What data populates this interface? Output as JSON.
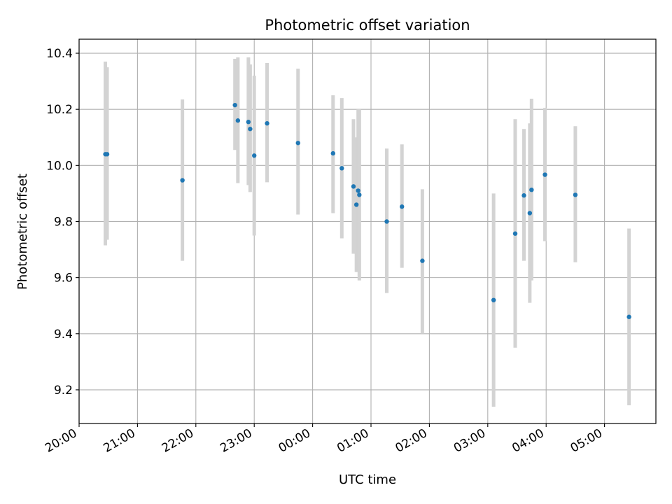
{
  "chart_data": {
    "type": "scatter",
    "title": "Photometric offset variation",
    "xlabel": "UTC time",
    "ylabel": "Photometric offset",
    "x_unit": "hours (UTC, continuing past midnight)",
    "xlim": [
      20.0,
      29.88
    ],
    "ylim": [
      9.08,
      10.45
    ],
    "grid": true,
    "x_ticks": [
      {
        "value": 20,
        "label": "20:00"
      },
      {
        "value": 21,
        "label": "21:00"
      },
      {
        "value": 22,
        "label": "22:00"
      },
      {
        "value": 23,
        "label": "23:00"
      },
      {
        "value": 24,
        "label": "00:00"
      },
      {
        "value": 25,
        "label": "01:00"
      },
      {
        "value": 26,
        "label": "02:00"
      },
      {
        "value": 27,
        "label": "03:00"
      },
      {
        "value": 28,
        "label": "04:00"
      },
      {
        "value": 29,
        "label": "05:00"
      }
    ],
    "y_ticks": [
      {
        "value": 9.2,
        "label": "9.2"
      },
      {
        "value": 9.4,
        "label": "9.4"
      },
      {
        "value": 9.6,
        "label": "9.6"
      },
      {
        "value": 9.8,
        "label": "9.8"
      },
      {
        "value": 10.0,
        "label": "10.0"
      },
      {
        "value": 10.2,
        "label": "10.2"
      },
      {
        "value": 10.4,
        "label": "10.4"
      }
    ],
    "marker_color": "#1f77b4",
    "errorbar_color": "#d3d3d3",
    "points": [
      {
        "x": 20.45,
        "y": 10.04,
        "low": 9.715,
        "high": 10.37
      },
      {
        "x": 20.48,
        "y": 10.04,
        "low": 9.735,
        "high": 10.35
      },
      {
        "x": 21.77,
        "y": 9.947,
        "low": 9.66,
        "high": 10.235
      },
      {
        "x": 22.67,
        "y": 10.215,
        "low": 10.055,
        "high": 10.38
      },
      {
        "x": 22.72,
        "y": 10.16,
        "low": 9.937,
        "high": 10.385
      },
      {
        "x": 22.9,
        "y": 10.155,
        "low": 9.93,
        "high": 10.385
      },
      {
        "x": 22.93,
        "y": 10.13,
        "low": 9.905,
        "high": 10.36
      },
      {
        "x": 23.0,
        "y": 10.035,
        "low": 9.75,
        "high": 10.32
      },
      {
        "x": 23.22,
        "y": 10.15,
        "low": 9.94,
        "high": 10.365
      },
      {
        "x": 23.75,
        "y": 10.08,
        "low": 9.825,
        "high": 10.345
      },
      {
        "x": 24.35,
        "y": 10.043,
        "low": 9.83,
        "high": 10.25
      },
      {
        "x": 24.5,
        "y": 9.99,
        "low": 9.74,
        "high": 10.24
      },
      {
        "x": 24.7,
        "y": 9.925,
        "low": 9.685,
        "high": 10.165
      },
      {
        "x": 24.75,
        "y": 9.86,
        "low": 9.62,
        "high": 10.1
      },
      {
        "x": 24.78,
        "y": 9.91,
        "low": 9.62,
        "high": 10.2
      },
      {
        "x": 24.8,
        "y": 9.895,
        "low": 9.59,
        "high": 10.2
      },
      {
        "x": 25.27,
        "y": 9.8,
        "low": 9.545,
        "high": 10.06
      },
      {
        "x": 25.53,
        "y": 9.853,
        "low": 9.635,
        "high": 10.075
      },
      {
        "x": 25.88,
        "y": 9.66,
        "low": 9.4,
        "high": 9.915
      },
      {
        "x": 27.1,
        "y": 9.52,
        "low": 9.14,
        "high": 9.9
      },
      {
        "x": 27.47,
        "y": 9.757,
        "low": 9.35,
        "high": 10.165
      },
      {
        "x": 27.62,
        "y": 9.893,
        "low": 9.66,
        "high": 10.13
      },
      {
        "x": 27.72,
        "y": 9.83,
        "low": 9.51,
        "high": 10.15
      },
      {
        "x": 27.75,
        "y": 9.913,
        "low": 9.59,
        "high": 10.238
      },
      {
        "x": 27.98,
        "y": 9.967,
        "low": 9.73,
        "high": 10.205
      },
      {
        "x": 28.5,
        "y": 9.895,
        "low": 9.655,
        "high": 10.14
      },
      {
        "x": 29.42,
        "y": 9.46,
        "low": 9.145,
        "high": 9.775
      }
    ]
  }
}
